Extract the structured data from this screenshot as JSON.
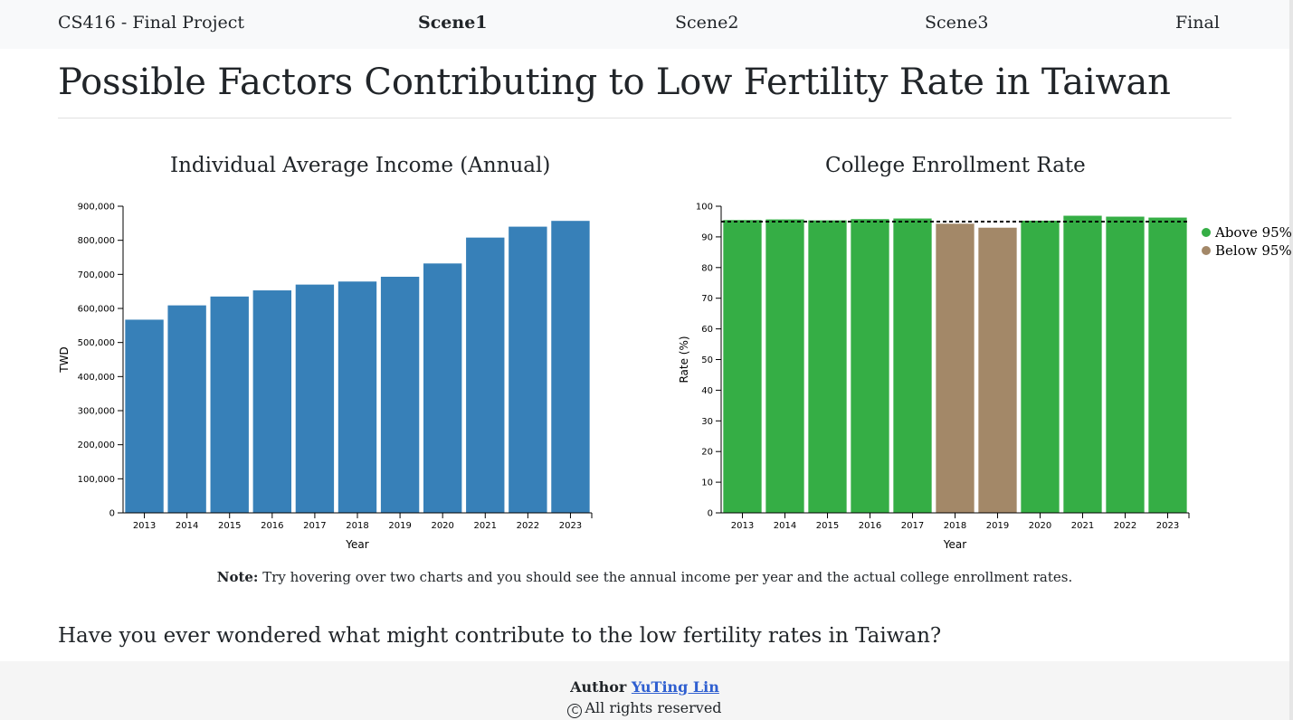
{
  "nav": {
    "brand": "CS416 - Final Project",
    "links": [
      "Scene1",
      "Scene2",
      "Scene3",
      "Final"
    ],
    "active": "Scene1"
  },
  "page_title": "Possible Factors Contributing to Low Fertility Rate in Taiwan",
  "charts": {
    "income_title": "Individual Average Income (Annual)",
    "enrollment_title": "College Enrollment Rate"
  },
  "chart_data": [
    {
      "type": "bar",
      "title": "Individual Average Income (Annual)",
      "xlabel": "Year",
      "ylabel": "TWD",
      "categories": [
        "2013",
        "2014",
        "2015",
        "2016",
        "2017",
        "2018",
        "2019",
        "2020",
        "2021",
        "2022",
        "2023"
      ],
      "values": [
        567000,
        609000,
        635000,
        653000,
        670000,
        679000,
        693000,
        732000,
        808000,
        840000,
        857000
      ],
      "ylim": [
        0,
        900000
      ],
      "yticks": [
        "0",
        "100,000",
        "200,000",
        "300,000",
        "400,000",
        "500,000",
        "600,000",
        "700,000",
        "800,000",
        "900,000"
      ],
      "color": "#3780b8",
      "grid": false
    },
    {
      "type": "bar",
      "title": "College Enrollment Rate",
      "xlabel": "Year",
      "ylabel": "Rate (%)",
      "categories": [
        "2013",
        "2014",
        "2015",
        "2016",
        "2017",
        "2018",
        "2019",
        "2020",
        "2021",
        "2022",
        "2023"
      ],
      "values": [
        95.5,
        95.7,
        95.4,
        95.8,
        96.0,
        94.3,
        93.0,
        95.3,
        96.9,
        96.6,
        96.3
      ],
      "ylim": [
        0,
        100
      ],
      "yticks": [
        "0",
        "10",
        "20",
        "30",
        "40",
        "50",
        "60",
        "70",
        "80",
        "90",
        "100"
      ],
      "threshold": 95,
      "legend": [
        {
          "label": "Above 95%",
          "color": "#35ae45"
        },
        {
          "label": "Below 95%",
          "color": "#a38868"
        }
      ],
      "legend_position": "right",
      "grid": false
    }
  ],
  "note": {
    "label": "Note:",
    "text": " Try hovering over two charts and you should see the annual income per year and the actual college enrollment rates."
  },
  "question": "Have you ever wondered what might contribute to the low fertility rates in Taiwan?",
  "footer": {
    "author_label": "Author",
    "author_name": "YuTing Lin",
    "rights": "All rights reserved",
    "copyright_symbol": "C"
  }
}
